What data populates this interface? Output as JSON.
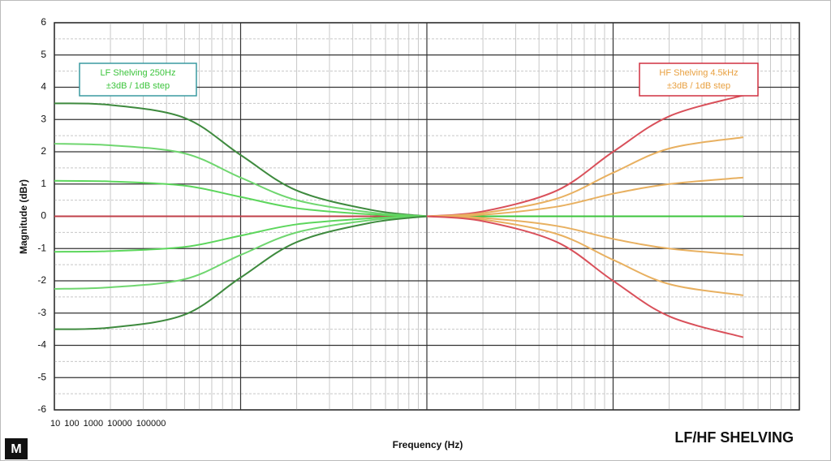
{
  "chart_data": {
    "type": "line",
    "title": "LF/HF SHELVING",
    "logo": "M",
    "xlabel": "Frequency (Hz)",
    "ylabel": "Magnitude (dBr)",
    "annotations": [
      "LF Shelving  250Hz",
      "±3dB / 1dB step",
      "HF Shelving  4.5kHz",
      "±3dB / 1dB step"
    ],
    "xscale": "log",
    "xlim": [
      10,
      100000
    ],
    "xticks": [
      10,
      100,
      1000,
      10000,
      100000
    ],
    "ylim": [
      -6,
      6
    ],
    "yticks": [
      -6,
      -5,
      -4,
      -3,
      -2,
      -1,
      0,
      1,
      2,
      3,
      4,
      5,
      6
    ],
    "grid": true,
    "series": [
      {
        "color": "#c0404a",
        "x": [
          10,
          1000
        ],
        "values": [
          0,
          0
        ]
      },
      {
        "color": "#3cc43c",
        "x": [
          1000,
          50000
        ],
        "values": [
          0,
          0
        ]
      },
      {
        "color": "#3e8a3e",
        "x": [
          10,
          20,
          50,
          100,
          200,
          500,
          1000
        ],
        "values": [
          3.5,
          3.45,
          3.05,
          1.9,
          0.8,
          0.2,
          0
        ]
      },
      {
        "color": "#6fd66f",
        "x": [
          10,
          20,
          50,
          100,
          200,
          500,
          1000
        ],
        "values": [
          2.25,
          2.2,
          1.95,
          1.2,
          0.5,
          0.12,
          0
        ]
      },
      {
        "color": "#5cd65c",
        "x": [
          10,
          20,
          50,
          100,
          200,
          500,
          1000
        ],
        "values": [
          1.1,
          1.08,
          0.95,
          0.6,
          0.25,
          0.06,
          0
        ]
      },
      {
        "color": "#5cd65c",
        "x": [
          10,
          20,
          50,
          100,
          200,
          500,
          1000
        ],
        "values": [
          -1.1,
          -1.08,
          -0.95,
          -0.6,
          -0.25,
          -0.06,
          0
        ]
      },
      {
        "color": "#6fd66f",
        "x": [
          10,
          20,
          50,
          100,
          200,
          500,
          1000
        ],
        "values": [
          -2.25,
          -2.2,
          -1.95,
          -1.2,
          -0.5,
          -0.12,
          0
        ]
      },
      {
        "color": "#3e8a3e",
        "x": [
          10,
          20,
          50,
          100,
          200,
          500,
          1000
        ],
        "values": [
          -3.5,
          -3.45,
          -3.05,
          -1.9,
          -0.8,
          -0.2,
          0
        ]
      },
      {
        "color": "#d9505a",
        "x": [
          1000,
          2000,
          5000,
          10000,
          20000,
          50000
        ],
        "values": [
          0,
          0.15,
          0.8,
          2.0,
          3.1,
          3.75
        ]
      },
      {
        "color": "#e8b060",
        "x": [
          1000,
          2000,
          5000,
          10000,
          20000,
          50000
        ],
        "values": [
          0,
          0.1,
          0.55,
          1.35,
          2.1,
          2.45
        ]
      },
      {
        "color": "#e8b060",
        "x": [
          1000,
          2000,
          5000,
          10000,
          20000,
          50000
        ],
        "values": [
          0,
          0.05,
          0.3,
          0.7,
          1.0,
          1.2
        ]
      },
      {
        "color": "#e8b060",
        "x": [
          1000,
          2000,
          5000,
          10000,
          20000,
          50000
        ],
        "values": [
          0,
          -0.05,
          -0.3,
          -0.7,
          -1.0,
          -1.2
        ]
      },
      {
        "color": "#e8b060",
        "x": [
          1000,
          2000,
          5000,
          10000,
          20000,
          50000
        ],
        "values": [
          0,
          -0.1,
          -0.55,
          -1.35,
          -2.1,
          -2.45
        ]
      },
      {
        "color": "#d9505a",
        "x": [
          1000,
          2000,
          5000,
          10000,
          20000,
          50000
        ],
        "values": [
          0,
          -0.15,
          -0.8,
          -2.0,
          -3.1,
          -3.75
        ]
      }
    ]
  }
}
